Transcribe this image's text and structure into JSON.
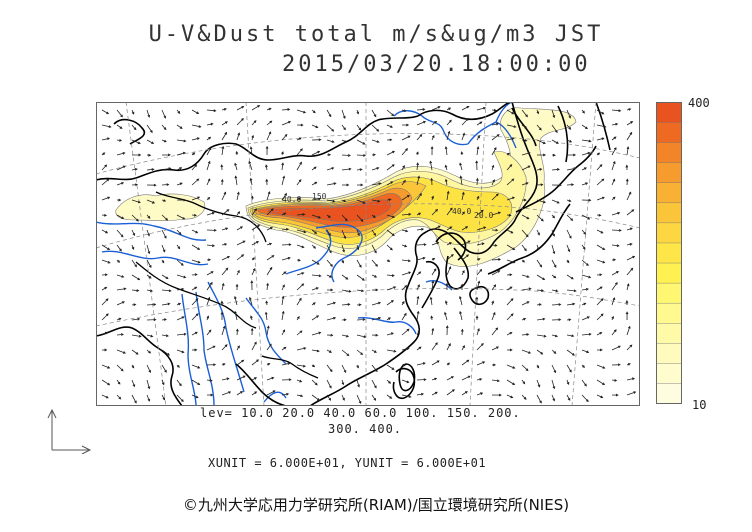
{
  "title": {
    "line1": "U-V&Dust total m/s&ug/m3 JST",
    "line2": "2015/03/20.18:00:00"
  },
  "legend": {
    "max_label": "400",
    "min_label": "10",
    "colors": [
      "#e8531f",
      "#ee6a22",
      "#f38427",
      "#f69b2d",
      "#f9b133",
      "#fbc53a",
      "#fdd741",
      "#fee649",
      "#fff152",
      "#fff771",
      "#fff98f",
      "#fffaa8",
      "#fffbbd",
      "#fffcce",
      "#fffde0"
    ]
  },
  "contour_levels": {
    "line1": "lev= 10.0 20.0 40.0 60.0 100. 150. 200.",
    "line2": "300. 400."
  },
  "units_text": "XUNIT = 6.000E+01, YUNIT = 6.000E+01",
  "credit": "©九州大学応用力学研究所(RIAM)/国立環境研究所(NIES)",
  "map_colors": {
    "coast": "#000000",
    "rivers": "#1a5fd6",
    "grid": "#888888",
    "arrows": "#222222"
  }
}
